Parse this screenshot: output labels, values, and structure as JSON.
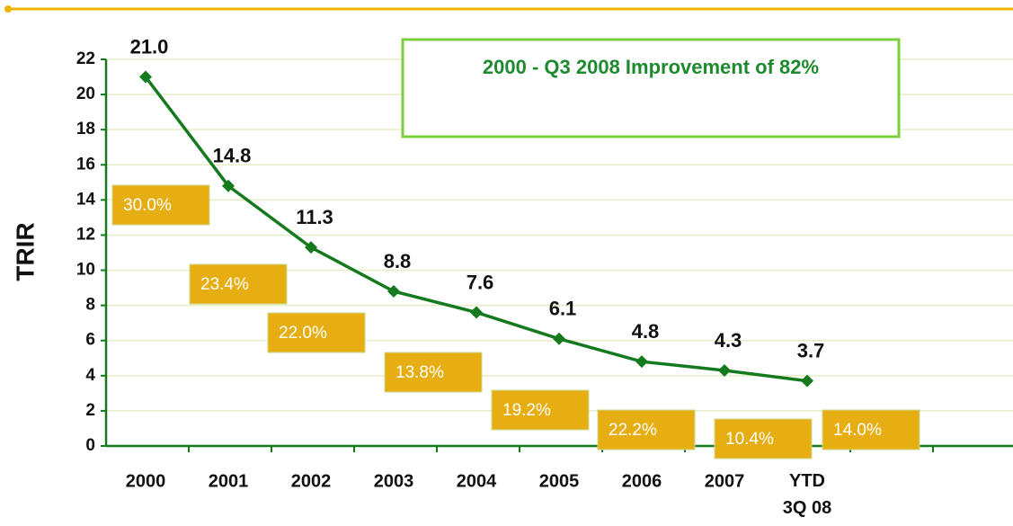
{
  "chart_data": {
    "type": "line",
    "ylabel": "TRIR",
    "categories": [
      "2000",
      "2001",
      "2002",
      "2003",
      "2004",
      "2005",
      "2006",
      "2007",
      "YTD\n3Q 08"
    ],
    "series": [
      {
        "name": "TRIR",
        "color": "#157a1e",
        "values": [
          21.0,
          14.8,
          11.3,
          8.8,
          7.6,
          6.1,
          4.8,
          4.3,
          3.7
        ],
        "value_labels": [
          "21.0",
          "14.8",
          "11.3",
          "8.8",
          "7.6",
          "6.1",
          "4.8",
          "4.3",
          "3.7"
        ]
      }
    ],
    "ylim": [
      0,
      22
    ],
    "yticks": [
      0,
      2,
      4,
      6,
      8,
      10,
      12,
      14,
      16,
      18,
      20,
      22
    ],
    "grid": true,
    "callout": "2000 - Q3 2008 Improvement of 82%",
    "annotations": [
      "30.0%",
      "23.4%",
      "22.0%",
      "13.8%",
      "19.2%",
      "22.2%",
      "10.4%",
      "14.0%"
    ]
  }
}
